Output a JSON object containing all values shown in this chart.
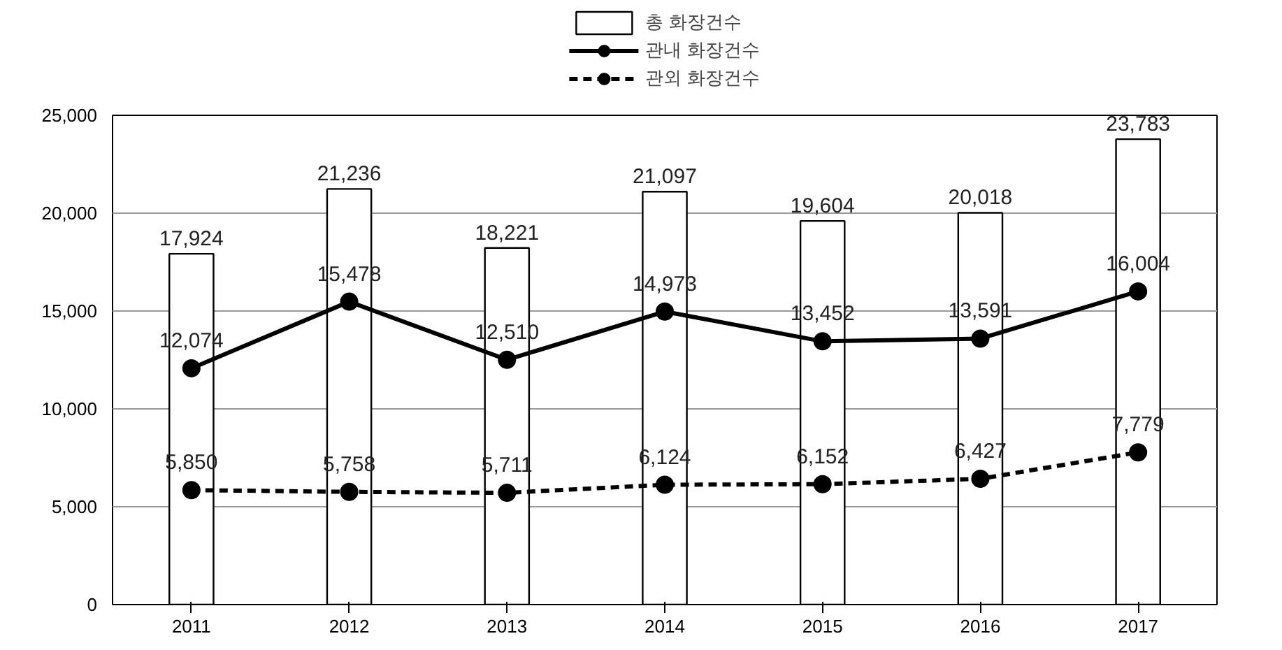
{
  "chart_data": {
    "type": "bar",
    "categories": [
      "2011",
      "2012",
      "2013",
      "2014",
      "2015",
      "2016",
      "2017"
    ],
    "series": [
      {
        "name": "총 화장건수",
        "type": "bar",
        "color": "#ffffff",
        "values": [
          17924,
          21236,
          18221,
          21097,
          19604,
          20018,
          23783
        ],
        "value_labels": [
          "17,924",
          "21,236",
          "18,221",
          "21,097",
          "19,604",
          "20,018",
          "23,783"
        ]
      },
      {
        "name": "관내 화장건수",
        "type": "line",
        "color": "#000000",
        "line_style": "solid",
        "marker": "circle",
        "values": [
          12074,
          15478,
          12510,
          14973,
          13452,
          13591,
          16004
        ],
        "value_labels": [
          "12,074",
          "15,478",
          "12,510",
          "14,973",
          "13,452",
          "13,591",
          "16,004"
        ]
      },
      {
        "name": "관외 화장건수",
        "type": "line",
        "color": "#000000",
        "line_style": "dashed",
        "marker": "circle",
        "values": [
          5850,
          5758,
          5711,
          6124,
          6152,
          6427,
          7779
        ],
        "value_labels": [
          "5,850",
          "5,758",
          "5,711",
          "6,124",
          "6,152",
          "6,427",
          "7,779"
        ]
      }
    ],
    "ylim": [
      0,
      25000
    ],
    "yticks": [
      {
        "value": 0,
        "label": "0"
      },
      {
        "value": 5000,
        "label": "5,000"
      },
      {
        "value": 10000,
        "label": "10,000"
      },
      {
        "value": 15000,
        "label": "15,000"
      },
      {
        "value": 20000,
        "label": "20,000"
      },
      {
        "value": 25000,
        "label": "25,000"
      }
    ],
    "grid": "y",
    "legend": "top"
  }
}
